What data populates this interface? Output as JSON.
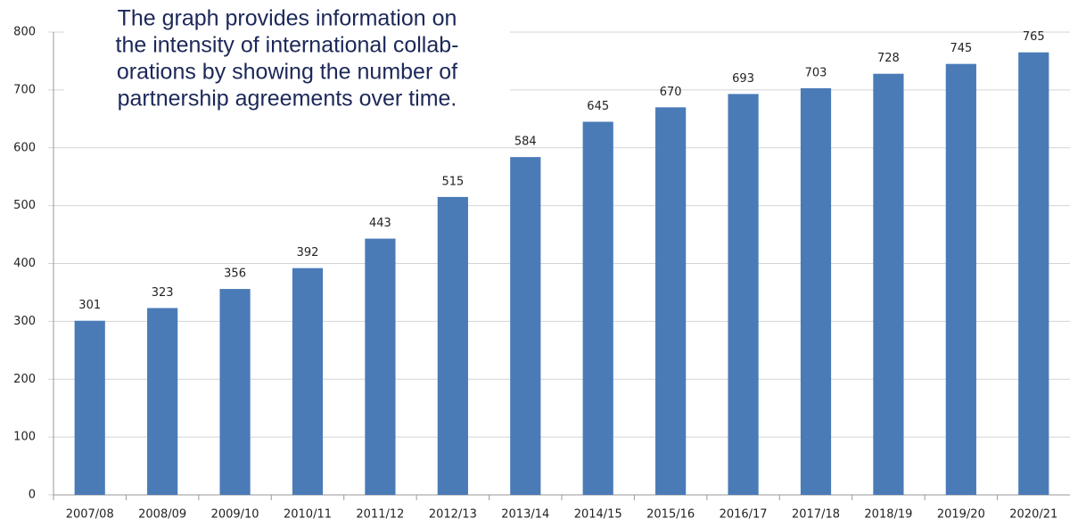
{
  "chart_data": {
    "type": "bar",
    "annotation": [
      "The graph provides information on",
      "the intensity of international collab-",
      "orations by showing the number of",
      "partnership agreements over time."
    ],
    "categories": [
      "2007/08",
      "2008/09",
      "2009/10",
      "2010/11",
      "2011/12",
      "2012/13",
      "2013/14",
      "2014/15",
      "2015/16",
      "2016/17",
      "2017/18",
      "2018/19",
      "2019/20",
      "2020/21"
    ],
    "values": [
      301,
      323,
      356,
      392,
      443,
      515,
      584,
      645,
      670,
      693,
      703,
      728,
      745,
      765
    ],
    "color": "#4a7bb7",
    "ylim": [
      0,
      800
    ],
    "yticks": [
      0,
      100,
      200,
      300,
      400,
      500,
      600,
      700,
      800
    ],
    "grid": true
  }
}
